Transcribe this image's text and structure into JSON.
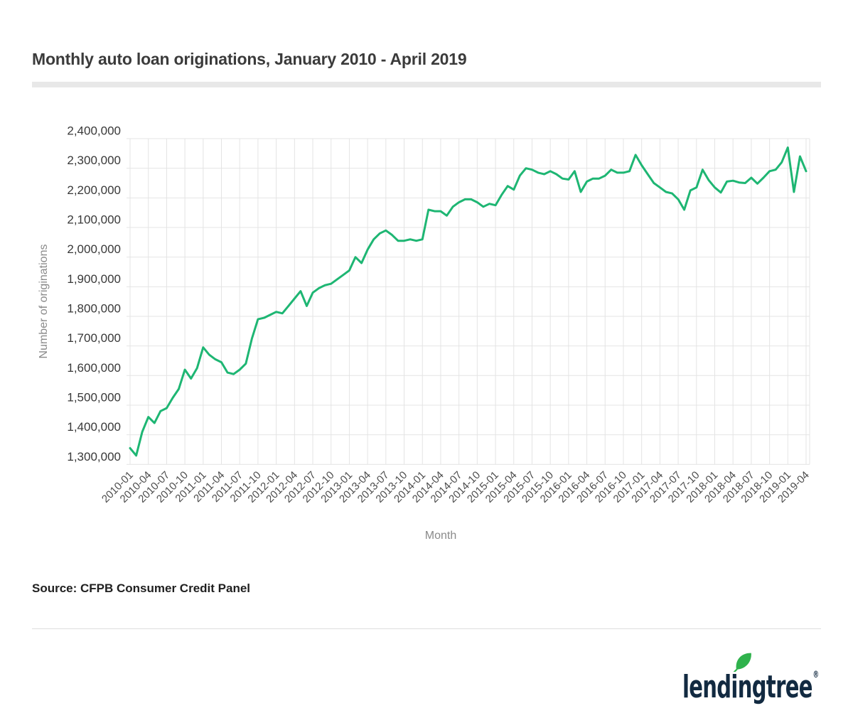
{
  "page": {
    "title": "Monthly auto loan originations, January 2010 - April 2019",
    "source": "Source: CFPB Consumer Credit Panel",
    "brand": "lendingtree",
    "registered": "®"
  },
  "logo": {
    "text_color": "#122a41",
    "leaf_color": "#2fb24c"
  },
  "chart_data": {
    "type": "line",
    "title": "Monthly auto loan originations, January 2010 - April 2019",
    "xlabel": "Month",
    "ylabel": "Number of originations",
    "grid": true,
    "legend": "none",
    "ylim": [
      1300000,
      2400000
    ],
    "y_ticks": [
      1300000,
      1400000,
      1500000,
      1600000,
      1700000,
      1800000,
      1900000,
      2000000,
      2100000,
      2200000,
      2300000,
      2400000
    ],
    "x_ticks": [
      "2010-01",
      "2010-04",
      "2010-07",
      "2010-10",
      "2011-01",
      "2011-04",
      "2011-07",
      "2011-10",
      "2012-01",
      "2012-04",
      "2012-07",
      "2012-10",
      "2013-01",
      "2013-04",
      "2013-07",
      "2013-10",
      "2014-01",
      "2014-04",
      "2014-07",
      "2014-10",
      "2015-01",
      "2015-04",
      "2015-07",
      "2015-10",
      "2016-01",
      "2016-04",
      "2016-07",
      "2016-10",
      "2017-01",
      "2017-04",
      "2017-07",
      "2017-10",
      "2018-01",
      "2018-04",
      "2018-07",
      "2018-10",
      "2019-01",
      "2019-04"
    ],
    "x": [
      "2010-01",
      "2010-02",
      "2010-03",
      "2010-04",
      "2010-05",
      "2010-06",
      "2010-07",
      "2010-08",
      "2010-09",
      "2010-10",
      "2010-11",
      "2010-12",
      "2011-01",
      "2011-02",
      "2011-03",
      "2011-04",
      "2011-05",
      "2011-06",
      "2011-07",
      "2011-08",
      "2011-09",
      "2011-10",
      "2011-11",
      "2011-12",
      "2012-01",
      "2012-02",
      "2012-03",
      "2012-04",
      "2012-05",
      "2012-06",
      "2012-07",
      "2012-08",
      "2012-09",
      "2012-10",
      "2012-11",
      "2012-12",
      "2013-01",
      "2013-02",
      "2013-03",
      "2013-04",
      "2013-05",
      "2013-06",
      "2013-07",
      "2013-08",
      "2013-09",
      "2013-10",
      "2013-11",
      "2013-12",
      "2014-01",
      "2014-02",
      "2014-03",
      "2014-04",
      "2014-05",
      "2014-06",
      "2014-07",
      "2014-08",
      "2014-09",
      "2014-10",
      "2014-11",
      "2014-12",
      "2015-01",
      "2015-02",
      "2015-03",
      "2015-04",
      "2015-05",
      "2015-06",
      "2015-07",
      "2015-08",
      "2015-09",
      "2015-10",
      "2015-11",
      "2015-12",
      "2016-01",
      "2016-02",
      "2016-03",
      "2016-04",
      "2016-05",
      "2016-06",
      "2016-07",
      "2016-08",
      "2016-09",
      "2016-10",
      "2016-11",
      "2016-12",
      "2017-01",
      "2017-02",
      "2017-03",
      "2017-04",
      "2017-05",
      "2017-06",
      "2017-07",
      "2017-08",
      "2017-09",
      "2017-10",
      "2017-11",
      "2017-12",
      "2018-01",
      "2018-02",
      "2018-03",
      "2018-04",
      "2018-05",
      "2018-06",
      "2018-07",
      "2018-08",
      "2018-09",
      "2018-10",
      "2018-11",
      "2018-12",
      "2019-01",
      "2019-02",
      "2019-03",
      "2019-04"
    ],
    "series": [
      {
        "name": "Number of originations",
        "color": "#1eb673",
        "values": [
          1355000,
          1330000,
          1410000,
          1460000,
          1440000,
          1480000,
          1490000,
          1525000,
          1555000,
          1620000,
          1590000,
          1625000,
          1695000,
          1670000,
          1655000,
          1645000,
          1610000,
          1605000,
          1620000,
          1640000,
          1725000,
          1790000,
          1795000,
          1805000,
          1815000,
          1810000,
          1835000,
          1860000,
          1885000,
          1835000,
          1880000,
          1895000,
          1905000,
          1910000,
          1925000,
          1940000,
          1955000,
          2000000,
          1980000,
          2025000,
          2060000,
          2080000,
          2090000,
          2075000,
          2055000,
          2055000,
          2060000,
          2055000,
          2060000,
          2160000,
          2155000,
          2155000,
          2140000,
          2170000,
          2185000,
          2195000,
          2195000,
          2185000,
          2170000,
          2180000,
          2175000,
          2210000,
          2240000,
          2228000,
          2275000,
          2300000,
          2295000,
          2285000,
          2280000,
          2290000,
          2280000,
          2265000,
          2262000,
          2290000,
          2220000,
          2255000,
          2265000,
          2265000,
          2275000,
          2295000,
          2285000,
          2285000,
          2290000,
          2345000,
          2310000,
          2280000,
          2250000,
          2235000,
          2220000,
          2215000,
          2195000,
          2160000,
          2225000,
          2235000,
          2295000,
          2260000,
          2235000,
          2218000,
          2255000,
          2258000,
          2252000,
          2250000,
          2268000,
          2248000,
          2268000,
          2290000,
          2295000,
          2320000,
          2370000,
          2220000,
          2340000,
          2290000
        ]
      }
    ]
  }
}
